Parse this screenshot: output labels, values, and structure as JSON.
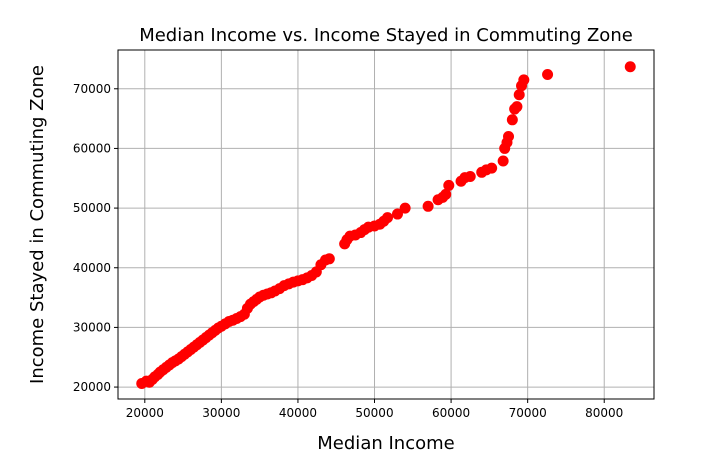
{
  "chart_data": {
    "type": "scatter",
    "title": "Median Income vs. Income Stayed in Commuting Zone",
    "xlabel": "Median Income",
    "ylabel": "Income Stayed in Commuting Zone",
    "xlim": [
      16500,
      86500
    ],
    "ylim": [
      18000,
      76500
    ],
    "xticks": [
      20000,
      30000,
      40000,
      50000,
      60000,
      70000,
      80000
    ],
    "yticks": [
      20000,
      30000,
      40000,
      50000,
      60000,
      70000
    ],
    "grid": true,
    "marker_color": "#ff0000",
    "grid_color": "#b0b0b0",
    "series": [
      {
        "x": [
          19600,
          20200,
          20600,
          21000,
          21300,
          21700,
          22000,
          22400,
          22800,
          23200,
          23600,
          24000,
          24400,
          24800,
          25200,
          25600,
          26000,
          26400,
          26800,
          27200,
          27600,
          28000,
          28400,
          28800,
          29200,
          29600,
          30000,
          30500,
          31000,
          31500,
          32000,
          32500,
          33000,
          33400,
          33800,
          34200,
          34600,
          35000,
          35500,
          36000,
          36500,
          37000,
          37600,
          38200,
          38800,
          39400,
          40000,
          40600,
          41200,
          41800,
          42400,
          43000,
          43600,
          44100,
          46100,
          46400,
          46800,
          47500,
          48200,
          48700,
          49200,
          50000,
          50700,
          51200,
          51700,
          53000,
          54000,
          57000,
          58300,
          58900,
          59300,
          59700,
          61300,
          61800,
          62500,
          64000,
          64600,
          65300,
          66800,
          67000,
          67300,
          67500,
          68000,
          68300,
          68600,
          68900,
          69200,
          69500,
          72600,
          83400
        ],
        "y": [
          20600,
          21000,
          20800,
          21300,
          21700,
          22100,
          22500,
          22900,
          23300,
          23700,
          24100,
          24400,
          24700,
          25100,
          25500,
          25900,
          26300,
          26700,
          27100,
          27500,
          27900,
          28300,
          28700,
          29100,
          29500,
          29900,
          30200,
          30600,
          31000,
          31200,
          31500,
          31800,
          32200,
          33200,
          33900,
          34300,
          34700,
          35100,
          35400,
          35600,
          35800,
          36100,
          36500,
          37000,
          37300,
          37600,
          37800,
          38000,
          38300,
          38700,
          39300,
          40500,
          41300,
          41500,
          44000,
          44700,
          45300,
          45500,
          45900,
          46400,
          46800,
          47000,
          47300,
          47800,
          48400,
          49000,
          50000,
          50300,
          51400,
          51800,
          52300,
          53800,
          54500,
          55100,
          55300,
          56000,
          56400,
          56700,
          57900,
          60000,
          61000,
          62000,
          64800,
          66600,
          67000,
          69000,
          70500,
          71500,
          72400,
          73700
        ]
      }
    ]
  }
}
